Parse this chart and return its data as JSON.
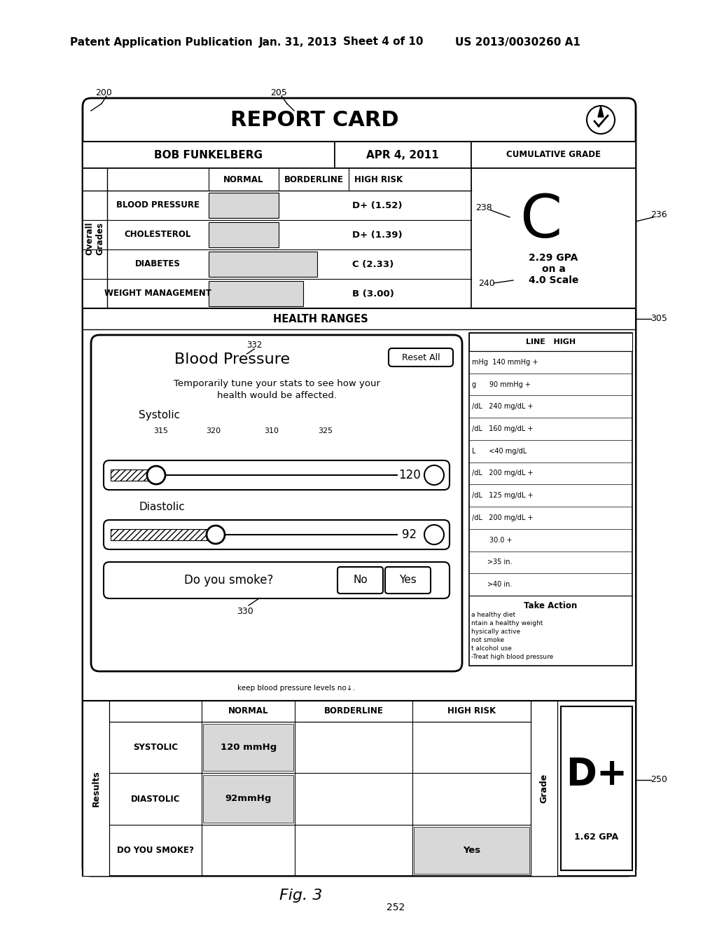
{
  "header_line1": "Patent Application Publication",
  "header_date": "Jan. 31, 2013",
  "header_sheet": "Sheet 4 of 10",
  "header_patent": "US 2013/0030260 A1",
  "fig_label": "Fig. 3",
  "fig_number": "252",
  "ref_200": "200",
  "ref_205": "205",
  "ref_236": "236",
  "ref_238": "238",
  "ref_240": "240",
  "ref_250": "250",
  "ref_305": "305",
  "ref_330": "330",
  "ref_332": "332",
  "ref_315": "315",
  "ref_320": "320",
  "ref_310": "310",
  "ref_325": "325",
  "title": "REPORT CARD",
  "name": "BOB FUNKELBERG",
  "date": "APR 4, 2011",
  "cum_grade_label": "CUMULATIVE GRADE",
  "grade_letter": "C",
  "gpa_text": "2.29 GPA\non a\n4.0 Scale",
  "col_normal": "NORMAL",
  "col_borderline": "BORDERLINE",
  "col_high_risk": "HIGH RISK",
  "row1_label": "BLOOD PRESSURE",
  "row1_grade": "D+ (1.52)",
  "row2_label": "CHOLESTEROL",
  "row2_grade": "D+ (1.39)",
  "row3_label": "DIABETES",
  "row3_grade": "C (2.33)",
  "row4_label": "WEIGHT MANAGEMENT",
  "row4_grade": "B (3.00)",
  "overall_label": "Overall\nGrades",
  "health_ranges": "HEALTH RANGES",
  "blood_pressure_title": "Blood Pressure",
  "reset_all": "Reset All",
  "tune_text1": "Temporarily tune your stats to see how your",
  "tune_text2": "health would be affected.",
  "systolic_label": "Systolic",
  "systolic_value": "120",
  "diastolic_label": "Diastolic",
  "diastolic_value": "92",
  "smoke_question": "Do you smoke?",
  "smoke_no": "No",
  "smoke_yes": "Yes",
  "line_high_header": "LINE   HIGH",
  "right_col_data": [
    "mHg  140 mmHg +",
    "g      90 mmHg +",
    "/dL   240 mg/dL +",
    "/dL   160 mg/dL +",
    "L      <40 mg/dL",
    "/dL   200 mg/dL +",
    "/dL   125 mg/dL +",
    "/dL   200 mg/dL +",
    "        30.0 +",
    "       >35 in.",
    "       >40 in."
  ],
  "take_action": "Take Action",
  "action_items": [
    "a healthy diet",
    "ntain a healthy weight",
    "hysically active",
    "not smoke",
    "t alcohol use",
    "-Treat high blood pressure"
  ],
  "bottom_scroll": "keep blood pressure levels no↓.",
  "results_label": "Results",
  "grade_label2": "Grade",
  "bottom_normal": "NORMAL",
  "bottom_borderline": "BORDERLINE",
  "bottom_high_risk": "HIGH RISK",
  "bottom_row1": "SYSTOLIC",
  "bottom_row1_val": "120 mmHg",
  "bottom_row2": "DIASTOLIC",
  "bottom_row2_val": "92mmHg",
  "bottom_row3": "DO YOU SMOKE?",
  "bottom_row3_val": "Yes",
  "bottom_grade": "D+",
  "bottom_gpa": "1.62 GPA"
}
